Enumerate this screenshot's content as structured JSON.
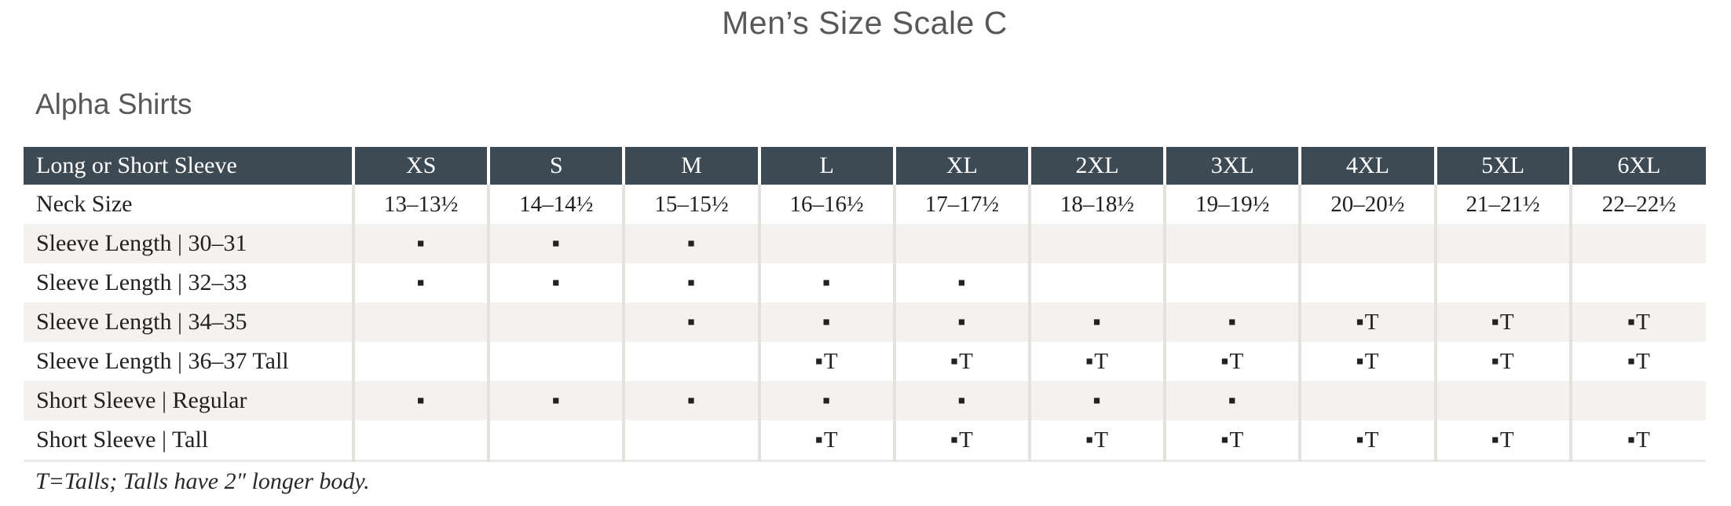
{
  "page": {
    "title": "Men’s Size Scale C",
    "section_heading": "Alpha Shirts",
    "footnote": "T=Talls; Talls have 2″ longer body."
  },
  "colors": {
    "header_bg": "#3d4a53",
    "header_text": "#ffffff",
    "row_stripe_bg": "#f3f2ef",
    "row_bg": "#ffffff",
    "column_divider": "#e4e2df",
    "body_text": "#232020",
    "heading_text": "#585858"
  },
  "table": {
    "header": [
      "Long or Short Sleeve",
      "XS",
      "S",
      "M",
      "L",
      "XL",
      "2XL",
      "3XL",
      "4XL",
      "5XL",
      "6XL"
    ],
    "marker_legend": {
      "dot": "▪",
      "dot_tall": "▪T"
    },
    "rows": [
      {
        "label": "Neck Size",
        "cells": [
          "13–13½",
          "14–14½",
          "15–15½",
          "16–16½",
          "17–17½",
          "18–18½",
          "19–19½",
          "20–20½",
          "21–21½",
          "22–22½"
        ]
      },
      {
        "label": "Sleeve Length | 30–31",
        "cells": [
          "▪",
          "▪",
          "▪",
          "",
          "",
          "",
          "",
          "",
          "",
          ""
        ]
      },
      {
        "label": "Sleeve Length | 32–33",
        "cells": [
          "▪",
          "▪",
          "▪",
          "▪",
          "▪",
          "",
          "",
          "",
          "",
          ""
        ]
      },
      {
        "label": "Sleeve Length | 34–35",
        "cells": [
          "",
          "",
          "▪",
          "▪",
          "▪",
          "▪",
          "▪",
          "▪T",
          "▪T",
          "▪T"
        ]
      },
      {
        "label": "Sleeve Length | 36–37 Tall",
        "cells": [
          "",
          "",
          "",
          "▪T",
          "▪T",
          "▪T",
          "▪T",
          "▪T",
          "▪T",
          "▪T"
        ]
      },
      {
        "label": "Short Sleeve | Regular",
        "cells": [
          "▪",
          "▪",
          "▪",
          "▪",
          "▪",
          "▪",
          "▪",
          "",
          "",
          ""
        ]
      },
      {
        "label": "Short Sleeve | Tall",
        "cells": [
          "",
          "",
          "",
          "▪T",
          "▪T",
          "▪T",
          "▪T",
          "▪T",
          "▪T",
          "▪T"
        ]
      }
    ]
  }
}
